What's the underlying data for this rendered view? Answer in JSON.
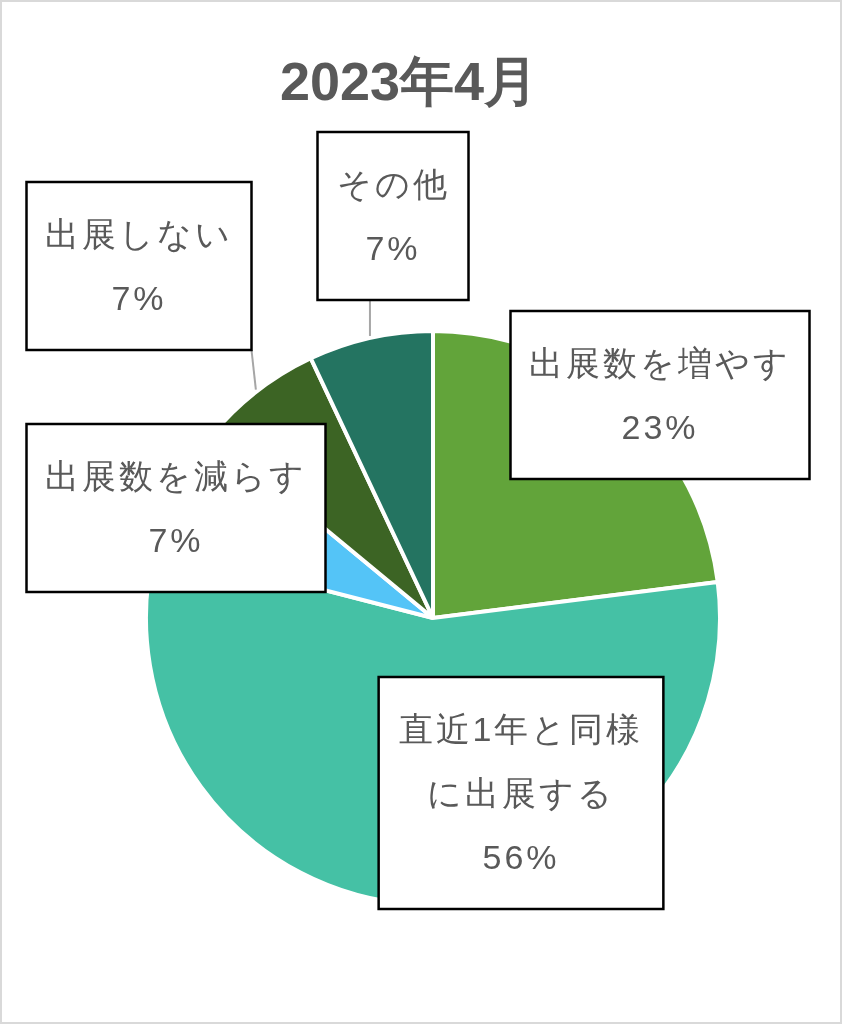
{
  "chart_data": {
    "type": "pie",
    "title": "2023年4月",
    "categories": [
      "出展数を増やす",
      "直近1年と同様に出展する",
      "出展数を減らす",
      "出展しない",
      "その他"
    ],
    "values": [
      23,
      56,
      7,
      7,
      7
    ],
    "colors": [
      "#62a43a",
      "#45c1a5",
      "#54c4f7",
      "#3c6424",
      "#247461"
    ],
    "value_labels": [
      "23%",
      "56%",
      "7%",
      "7%",
      "7%"
    ]
  }
}
